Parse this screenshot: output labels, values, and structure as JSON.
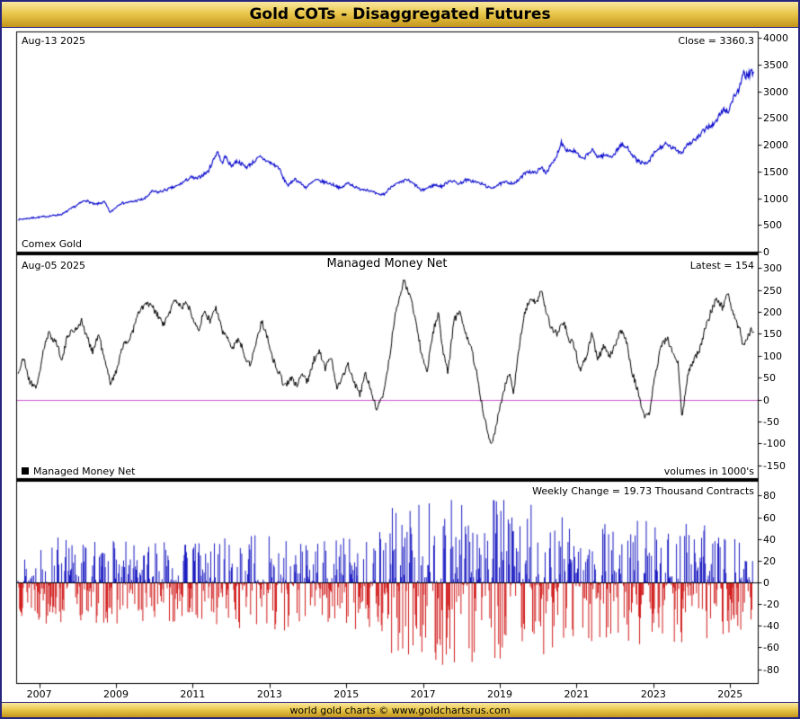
{
  "title": "Gold COTs - Disaggregated Futures",
  "footer": {
    "credit": "world gold charts © www.goldchartsrus.com"
  },
  "colors": {
    "frame": "#26267e",
    "title_gradient": [
      "#f9e7a0",
      "#eac94e",
      "#c3961b"
    ],
    "price_line": "#0000cc",
    "mm_line": "#000000",
    "mm_zero_line": "#cc55cc",
    "bar_positive": "#0000bb",
    "bar_negative": "#cc0000"
  },
  "x_axis": {
    "range": [
      2006.4,
      2025.72
    ],
    "ticks": [
      2007,
      2009,
      2011,
      2013,
      2015,
      2017,
      2019,
      2021,
      2023,
      2025
    ]
  },
  "chart_data": [
    {
      "type": "line",
      "name": "Comex Gold",
      "date_label": "Aug-13 2025",
      "close_label": "Close = 3360.3",
      "close_value": 3360.3,
      "color": "#0000cc",
      "ylim": [
        0,
        4000
      ],
      "ytick_step": 500,
      "legend_position": "none",
      "grid": false,
      "x": [
        2006.45,
        2006.8,
        2007.2,
        2007.6,
        2008.2,
        2008.45,
        2008.7,
        2008.85,
        2009.1,
        2009.4,
        2009.75,
        2009.95,
        2010.1,
        2010.4,
        2010.6,
        2010.95,
        2011.1,
        2011.4,
        2011.65,
        2011.75,
        2011.85,
        2012.0,
        2012.15,
        2012.4,
        2012.75,
        2013.0,
        2013.25,
        2013.35,
        2013.5,
        2013.65,
        2013.95,
        2014.2,
        2014.5,
        2014.75,
        2014.85,
        2015.05,
        2015.3,
        2015.55,
        2015.85,
        2016.0,
        2016.2,
        2016.5,
        2016.55,
        2016.85,
        2016.95,
        2017.3,
        2017.5,
        2017.7,
        2017.95,
        2018.1,
        2018.3,
        2018.6,
        2018.75,
        2018.95,
        2019.15,
        2019.4,
        2019.6,
        2019.7,
        2019.9,
        2020.1,
        2020.2,
        2020.45,
        2020.6,
        2020.75,
        2020.95,
        2021.15,
        2021.4,
        2021.55,
        2021.75,
        2021.95,
        2022.15,
        2022.35,
        2022.55,
        2022.75,
        2022.85,
        2023.05,
        2023.3,
        2023.55,
        2023.75,
        2023.85,
        2024.0,
        2024.2,
        2024.4,
        2024.6,
        2024.8,
        2024.95,
        2025.1,
        2025.25,
        2025.35,
        2025.45,
        2025.55,
        2025.62
      ],
      "y": [
        600,
        630,
        660,
        700,
        965,
        880,
        930,
        730,
        900,
        930,
        990,
        1130,
        1110,
        1180,
        1230,
        1390,
        1360,
        1500,
        1890,
        1650,
        1780,
        1600,
        1700,
        1580,
        1770,
        1670,
        1570,
        1380,
        1230,
        1370,
        1200,
        1340,
        1290,
        1230,
        1180,
        1290,
        1180,
        1160,
        1060,
        1080,
        1240,
        1310,
        1360,
        1220,
        1140,
        1250,
        1220,
        1340,
        1270,
        1340,
        1320,
        1250,
        1180,
        1250,
        1300,
        1280,
        1420,
        1510,
        1470,
        1570,
        1480,
        1730,
        2050,
        1900,
        1880,
        1720,
        1900,
        1780,
        1800,
        1790,
        2000,
        1930,
        1720,
        1640,
        1650,
        1870,
        2010,
        1920,
        1850,
        1990,
        2050,
        2160,
        2330,
        2390,
        2650,
        2630,
        2900,
        3060,
        3330,
        3280,
        3340,
        3360.3
      ],
      "noise_note": "values estimated from weekly line; light weekly jitter in rendering"
    },
    {
      "type": "line",
      "title": "Managed Money Net",
      "date_label": "Aug-05 2025",
      "latest_label": "Latest = 154",
      "latest_value": 154,
      "legend": "Managed Money Net",
      "units_label": "volumes in 1000's",
      "color": "#000000",
      "zero_line_color": "#cc55cc",
      "ylim": [
        -150,
        300
      ],
      "ytick_step": 50,
      "grid": false,
      "x": [
        2006.45,
        2006.6,
        2006.75,
        2006.95,
        2007.1,
        2007.25,
        2007.45,
        2007.6,
        2007.75,
        2007.95,
        2008.1,
        2008.25,
        2008.4,
        2008.55,
        2008.7,
        2008.85,
        2009.0,
        2009.15,
        2009.3,
        2009.45,
        2009.6,
        2009.8,
        2009.95,
        2010.1,
        2010.25,
        2010.4,
        2010.55,
        2010.7,
        2010.85,
        2011.0,
        2011.15,
        2011.3,
        2011.45,
        2011.6,
        2011.75,
        2011.9,
        2012.05,
        2012.2,
        2012.35,
        2012.5,
        2012.65,
        2012.8,
        2012.95,
        2013.1,
        2013.25,
        2013.4,
        2013.55,
        2013.7,
        2013.85,
        2014.0,
        2014.15,
        2014.3,
        2014.45,
        2014.6,
        2014.75,
        2014.9,
        2015.05,
        2015.2,
        2015.35,
        2015.5,
        2015.65,
        2015.8,
        2015.95,
        2016.1,
        2016.25,
        2016.4,
        2016.5,
        2016.6,
        2016.7,
        2016.8,
        2016.95,
        2017.1,
        2017.25,
        2017.4,
        2017.5,
        2017.65,
        2017.8,
        2017.95,
        2018.1,
        2018.25,
        2018.4,
        2018.55,
        2018.7,
        2018.8,
        2018.95,
        2019.1,
        2019.25,
        2019.35,
        2019.5,
        2019.65,
        2019.8,
        2019.95,
        2020.1,
        2020.2,
        2020.35,
        2020.5,
        2020.65,
        2020.8,
        2020.95,
        2021.1,
        2021.25,
        2021.4,
        2021.55,
        2021.7,
        2021.85,
        2022.0,
        2022.15,
        2022.3,
        2022.45,
        2022.6,
        2022.75,
        2022.9,
        2023.05,
        2023.2,
        2023.35,
        2023.5,
        2023.65,
        2023.75,
        2023.9,
        2024.05,
        2024.2,
        2024.35,
        2024.5,
        2024.65,
        2024.8,
        2024.95,
        2025.1,
        2025.25,
        2025.35,
        2025.45,
        2025.55,
        2025.62
      ],
      "y": [
        60,
        95,
        40,
        30,
        110,
        150,
        130,
        90,
        150,
        160,
        180,
        140,
        110,
        150,
        90,
        40,
        60,
        120,
        130,
        160,
        200,
        220,
        210,
        190,
        170,
        200,
        230,
        210,
        220,
        190,
        160,
        200,
        180,
        210,
        160,
        140,
        120,
        140,
        100,
        80,
        130,
        180,
        140,
        90,
        60,
        30,
        50,
        30,
        60,
        40,
        90,
        110,
        70,
        100,
        30,
        50,
        80,
        40,
        10,
        60,
        20,
        -25,
        10,
        80,
        180,
        240,
        270,
        250,
        230,
        180,
        110,
        60,
        150,
        200,
        120,
        60,
        180,
        200,
        150,
        120,
        60,
        -20,
        -80,
        -100,
        -40,
        20,
        60,
        10,
        120,
        200,
        230,
        220,
        250,
        200,
        160,
        150,
        180,
        140,
        120,
        60,
        100,
        150,
        90,
        120,
        100,
        120,
        160,
        130,
        60,
        20,
        -40,
        -30,
        60,
        120,
        140,
        110,
        80,
        -45,
        60,
        90,
        110,
        160,
        200,
        230,
        210,
        240,
        190,
        160,
        120,
        140,
        160,
        154
      ],
      "noise_note": "values estimated from weekly line; light weekly jitter in rendering"
    },
    {
      "type": "bar",
      "annotation": "Weekly Change = 19.73 Thousand Contracts",
      "last_value": 19.73,
      "pos_color": "#0000bb",
      "neg_color": "#cc0000",
      "ylim": [
        -80,
        80
      ],
      "ytick_step": 20,
      "grid": false,
      "note": "weekly change bars (diff of Managed Money Net); individual bars not readable at this scale, reconstructed from yearly amplitude envelope",
      "envelope_x": [
        2006.5,
        2007,
        2008,
        2009,
        2010,
        2011,
        2012,
        2013,
        2014,
        2015,
        2015.8,
        2016,
        2016.5,
        2017,
        2017.5,
        2018,
        2018.5,
        2019,
        2019.5,
        2020,
        2020.5,
        2021,
        2022,
        2023,
        2024,
        2025,
        2025.6
      ],
      "envelope_amp": [
        22,
        28,
        32,
        28,
        28,
        28,
        30,
        34,
        28,
        32,
        30,
        48,
        55,
        58,
        62,
        55,
        60,
        62,
        55,
        50,
        45,
        38,
        40,
        42,
        40,
        34,
        30
      ],
      "seed": 13
    }
  ]
}
